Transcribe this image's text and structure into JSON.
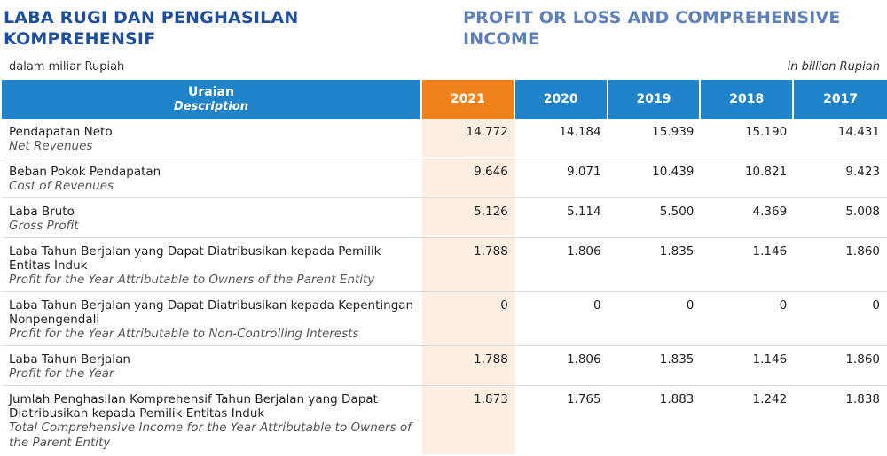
{
  "title": {
    "id": "LABA RUGI DAN PENGHASILAN KOMPREHENSIF",
    "en": "PROFIT OR LOSS AND COMPREHENSIVE INCOME"
  },
  "unit": {
    "id": "dalam miliar Rupiah",
    "en": "in billion Rupiah"
  },
  "header": {
    "desc_id": "Uraian",
    "desc_en": "Description",
    "years": [
      "2021",
      "2020",
      "2019",
      "2018",
      "2017"
    ],
    "highlight_color": "#f0821e",
    "header_color": "#1f83c9"
  },
  "rows": [
    {
      "id": "Pendapatan Neto",
      "en": "Net Revenues",
      "values": [
        "14.772",
        "14.184",
        "15.939",
        "15.190",
        "14.431"
      ]
    },
    {
      "id": "Beban Pokok Pendapatan",
      "en": "Cost of Revenues",
      "values": [
        "9.646",
        "9.071",
        "10.439",
        "10.821",
        "9.423"
      ]
    },
    {
      "id": "Laba Bruto",
      "en": "Gross Profit",
      "values": [
        "5.126",
        "5.114",
        "5.500",
        "4.369",
        "5.008"
      ]
    },
    {
      "id": "Laba Tahun Berjalan yang Dapat Diatribusikan kepada Pemilik Entitas Induk",
      "en": "Profit for the Year Attributable to Owners of the Parent Entity",
      "values": [
        "1.788",
        "1.806",
        "1.835",
        "1.146",
        "1.860"
      ]
    },
    {
      "id": "Laba Tahun Berjalan yang Dapat Diatribusikan kepada Kepentingan Nonpengendali",
      "en": "Profit for the Year Attributable to Non-Controlling Interests",
      "values": [
        "0",
        "0",
        "0",
        "0",
        "0"
      ]
    },
    {
      "id": "Laba Tahun Berjalan",
      "en": "Profit for the Year",
      "values": [
        "1.788",
        "1.806",
        "1.835",
        "1.146",
        "1.860"
      ]
    },
    {
      "id": "Jumlah Penghasilan Komprehensif Tahun Berjalan yang Dapat Diatribusikan kepada Pemilik Entitas Induk",
      "en": "Total Comprehensive Income for the Year Attributable to Owners of the Parent Entity",
      "values": [
        "1.873",
        "1.765",
        "1.883",
        "1.242",
        "1.838"
      ]
    }
  ]
}
